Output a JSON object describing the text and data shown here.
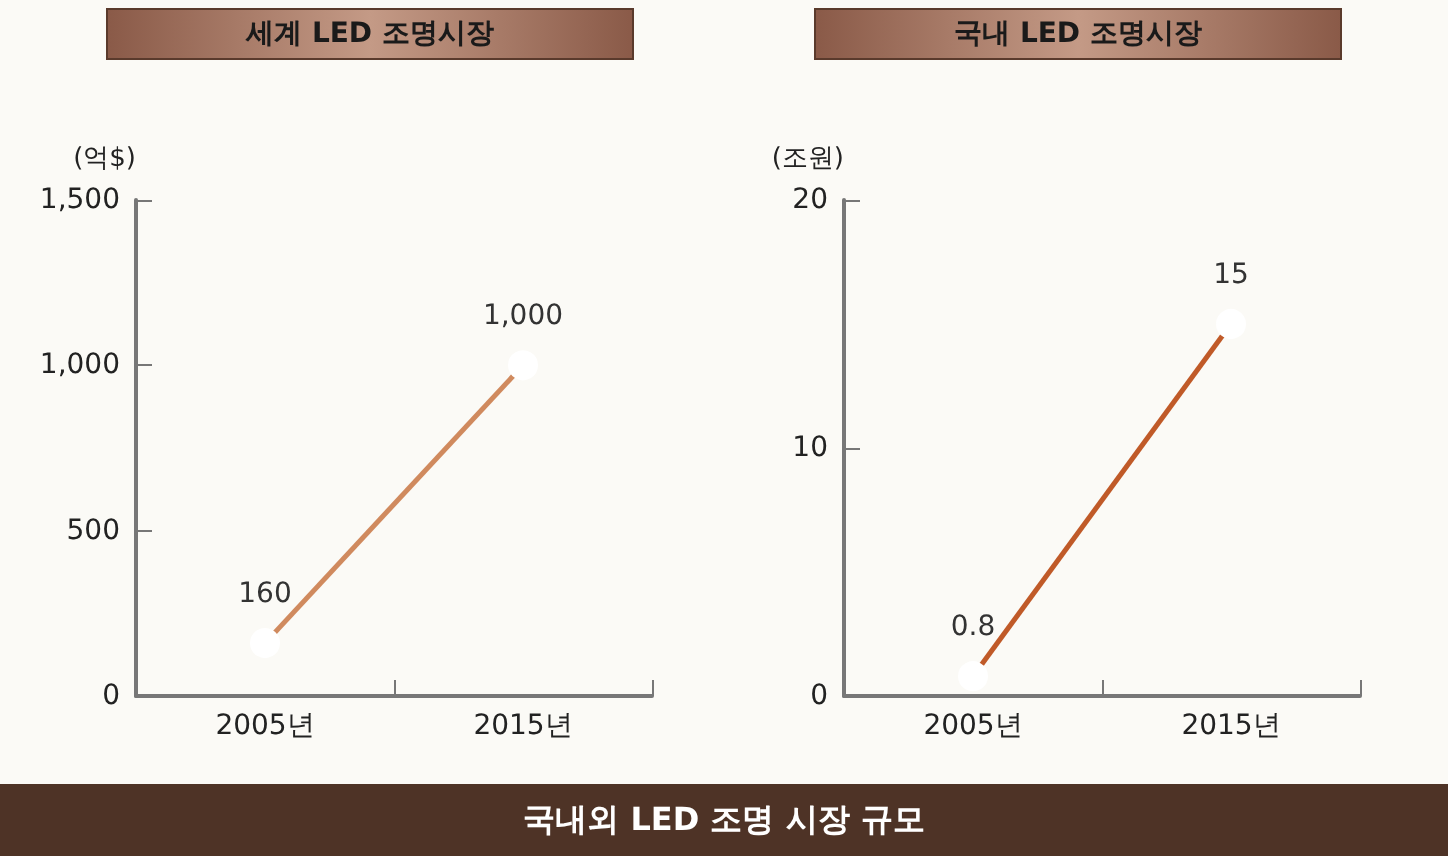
{
  "chart_data": [
    {
      "type": "line",
      "title": "세계 LED 조명시장",
      "ylabel": "(억$)",
      "categories": [
        "2005년",
        "2015년"
      ],
      "series": [
        {
          "color": "#d08a5e",
          "values": [
            160,
            1000
          ],
          "value_labels": [
            "160",
            "1,000"
          ]
        }
      ],
      "ylim": [
        0,
        1500
      ],
      "yticks": [
        0,
        500,
        {
          "value": 1000,
          "label": "1,000"
        },
        {
          "value": 1500,
          "label": "1,500"
        }
      ],
      "grid": false,
      "marker": "circle",
      "line_style": "solid",
      "annotations": [
        "국내외 LED 조명 시장 규모"
      ]
    },
    {
      "type": "line",
      "title": "국내 LED 조명시장",
      "ylabel": "(조원)",
      "categories": [
        "2005년",
        "2015년"
      ],
      "series": [
        {
          "color": "#c05a28",
          "values": [
            0.8,
            15
          ],
          "value_labels": [
            "0.8",
            "15"
          ]
        }
      ],
      "ylim": [
        0,
        20
      ],
      "yticks": [
        0,
        10,
        20
      ],
      "grid": false,
      "marker": "circle",
      "line_style": "solid"
    }
  ]
}
